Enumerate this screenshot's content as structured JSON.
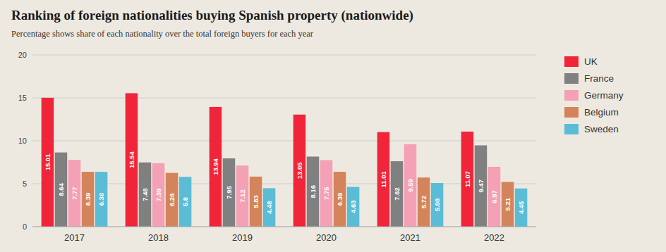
{
  "chart_data": {
    "type": "bar",
    "title": "Ranking of foreign nationalities buying Spanish property (nationwide)",
    "subtitle": "Percentage shows share of each nationality over the total foreign buyers for each year",
    "categories": [
      "2017",
      "2018",
      "2019",
      "2020",
      "2021",
      "2022"
    ],
    "series": [
      {
        "name": "UK",
        "color": "#f0253a",
        "values": [
          15.01,
          15.54,
          13.94,
          13.05,
          11.01,
          11.07
        ]
      },
      {
        "name": "France",
        "color": "#808080",
        "values": [
          8.64,
          7.48,
          7.95,
          8.16,
          7.62,
          9.47
        ]
      },
      {
        "name": "Germany",
        "color": "#f4a0b5",
        "values": [
          7.77,
          7.39,
          7.12,
          7.75,
          9.59,
          6.97
        ]
      },
      {
        "name": "Belgium",
        "color": "#d4845a",
        "values": [
          6.39,
          6.26,
          5.83,
          6.39,
          5.72,
          5.21
        ]
      },
      {
        "name": "Sweden",
        "color": "#5bbcd6",
        "values": [
          6.38,
          5.8,
          4.48,
          4.63,
          5.08,
          4.45
        ]
      }
    ],
    "ylim": [
      0,
      20
    ],
    "yticks": [
      0,
      5,
      10,
      15,
      20
    ],
    "grid": true,
    "legend": "upper right",
    "data_labels": true
  }
}
